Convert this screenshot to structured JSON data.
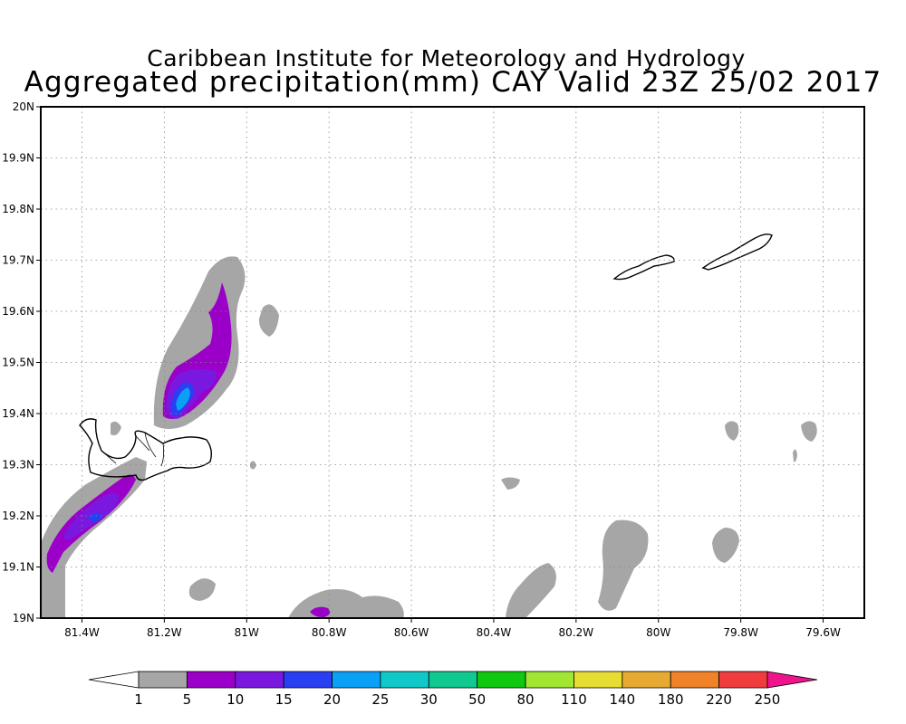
{
  "titles": {
    "line1": "Caribbean Institute for Meteorology and Hydrology",
    "line2": "Aggregated precipitation(mm) CAY Valid 23Z 25/02 2017"
  },
  "chart_data": {
    "type": "heatmap",
    "title": "Aggregated precipitation(mm) CAY Valid 23Z 25/02 2017",
    "units": "mm",
    "x_range": [
      -81.5,
      -79.5
    ],
    "y_range": [
      19.0,
      20.0
    ],
    "x_ticks": [
      {
        "value": -81.4,
        "label": "81.4W"
      },
      {
        "value": -81.2,
        "label": "81.2W"
      },
      {
        "value": -81.0,
        "label": "81W"
      },
      {
        "value": -80.8,
        "label": "80.8W"
      },
      {
        "value": -80.6,
        "label": "80.6W"
      },
      {
        "value": -80.4,
        "label": "80.4W"
      },
      {
        "value": -80.2,
        "label": "80.2W"
      },
      {
        "value": -80.0,
        "label": "80W"
      },
      {
        "value": -79.8,
        "label": "79.8W"
      },
      {
        "value": -79.6,
        "label": "79.6W"
      }
    ],
    "y_ticks": [
      {
        "value": 19.0,
        "label": "19N"
      },
      {
        "value": 19.1,
        "label": "19.1N"
      },
      {
        "value": 19.2,
        "label": "19.2N"
      },
      {
        "value": 19.3,
        "label": "19.3N"
      },
      {
        "value": 19.4,
        "label": "19.4N"
      },
      {
        "value": 19.5,
        "label": "19.5N"
      },
      {
        "value": 19.6,
        "label": "19.6N"
      },
      {
        "value": 19.7,
        "label": "19.7N"
      },
      {
        "value": 19.8,
        "label": "19.8N"
      },
      {
        "value": 19.9,
        "label": "19.9N"
      },
      {
        "value": 20.0,
        "label": "20N"
      }
    ],
    "grid": true,
    "legend": {
      "position": "bottom",
      "levels": [
        "1",
        "5",
        "10",
        "15",
        "20",
        "25",
        "30",
        "50",
        "80",
        "110",
        "140",
        "180",
        "220",
        "250"
      ],
      "colors": [
        "#ffffff",
        "#a6a6a6",
        "#9a00c8",
        "#7a18e0",
        "#2a3ef2",
        "#0aa0f6",
        "#10c8c8",
        "#10c890",
        "#10c810",
        "#a0e632",
        "#e6dc32",
        "#e6aa32",
        "#f08228",
        "#f03c3c",
        "#f0148c"
      ]
    },
    "precip_areas": [
      {
        "name": "sw-band",
        "level": "1-5",
        "peak_level": "15-20",
        "lon": -81.35,
        "lat": 19.2
      },
      {
        "name": "grand-cayman-north",
        "level": "1-5",
        "peak_level": "20-25",
        "lon": -81.15,
        "lat": 19.43
      },
      {
        "name": "east-blobs",
        "level": "1-5",
        "lon": -79.95,
        "lat": 19.1
      }
    ],
    "land_outlines": [
      {
        "name": "Grand Cayman",
        "lon": -81.25,
        "lat": 19.32
      },
      {
        "name": "Little Cayman",
        "lon": -80.05,
        "lat": 19.68
      },
      {
        "name": "Cayman Brac",
        "lon": -79.83,
        "lat": 19.72
      }
    ]
  }
}
